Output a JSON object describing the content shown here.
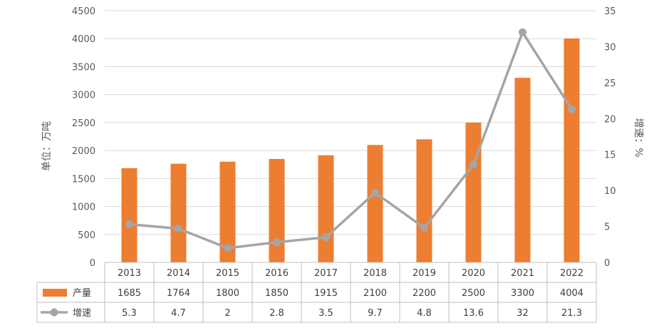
{
  "chart_data": {
    "type": "bar",
    "categories": [
      "2013",
      "2014",
      "2015",
      "2016",
      "2017",
      "2018",
      "2019",
      "2020",
      "2021",
      "2022"
    ],
    "series": [
      {
        "name": "产量",
        "type": "bar",
        "axis": "left",
        "color": "#ED7D31",
        "values": [
          1685,
          1764,
          1800,
          1850,
          1915,
          2100,
          2200,
          2500,
          3300,
          4004
        ]
      },
      {
        "name": "增速",
        "type": "line",
        "axis": "right",
        "color": "#A5A5A5",
        "values": [
          5.3,
          4.7,
          2,
          2.8,
          3.5,
          9.7,
          4.8,
          13.6,
          32,
          21.3
        ]
      }
    ],
    "ylabel": "单位：万吨",
    "y2label": "增速：%",
    "ylim": [
      0,
      4500
    ],
    "y2lim": [
      0,
      35
    ],
    "yticks": [
      0,
      500,
      1000,
      1500,
      2000,
      2500,
      3000,
      3500,
      4000,
      4500
    ],
    "y2ticks": [
      0,
      5,
      10,
      15,
      20,
      25,
      30,
      35
    ],
    "grid": true,
    "legend": "data-table"
  }
}
